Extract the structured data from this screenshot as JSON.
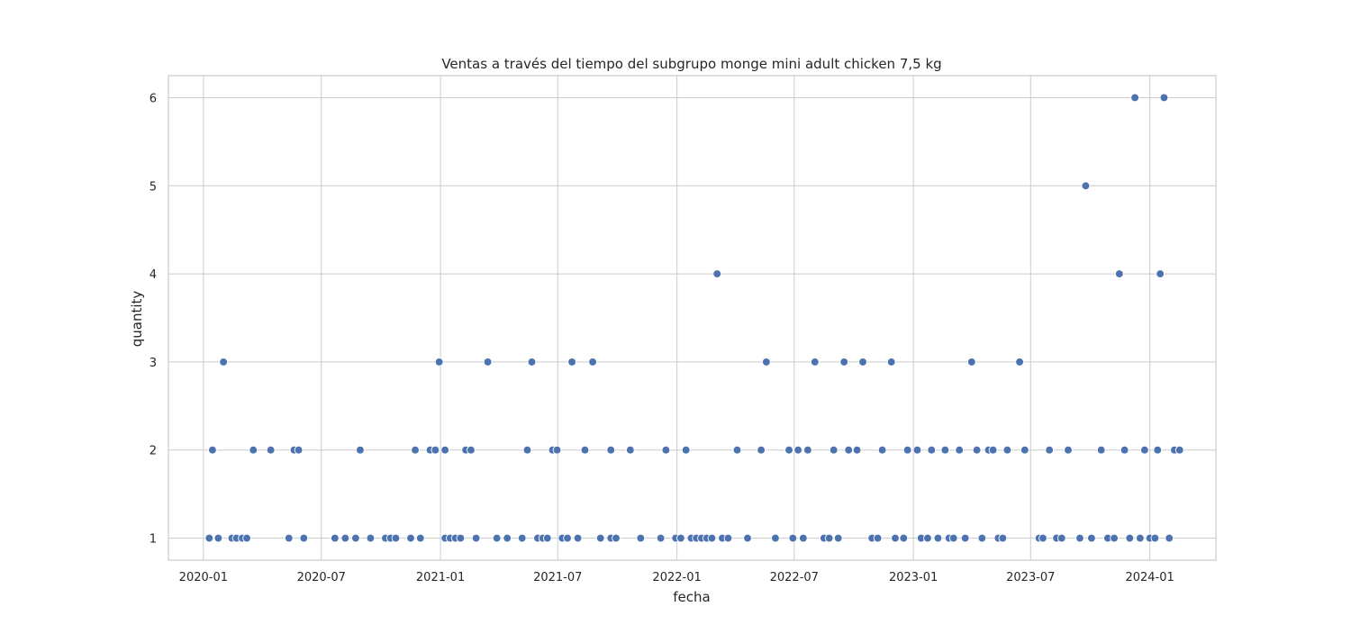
{
  "chart_data": {
    "type": "scatter",
    "title": "Ventas a través del tiempo del subgrupo monge mini adult chicken 7,5 kg",
    "xlabel": "fecha",
    "ylabel": "quantity",
    "x_ticks": [
      "2020-01",
      "2020-07",
      "2021-01",
      "2021-07",
      "2022-01",
      "2022-07",
      "2023-01",
      "2023-07",
      "2024-01"
    ],
    "y_ticks": [
      1,
      2,
      3,
      4,
      5,
      6
    ],
    "xlim": [
      "2019-11-08",
      "2024-04-12"
    ],
    "ylim": [
      0.75,
      6.25
    ],
    "grid": true,
    "point_color": "#4c72b0",
    "points": [
      {
        "x": "2020-01-10",
        "y": 1
      },
      {
        "x": "2020-01-15",
        "y": 2
      },
      {
        "x": "2020-01-24",
        "y": 1
      },
      {
        "x": "2020-02-01",
        "y": 3
      },
      {
        "x": "2020-02-14",
        "y": 1
      },
      {
        "x": "2020-02-21",
        "y": 1
      },
      {
        "x": "2020-03-01",
        "y": 1
      },
      {
        "x": "2020-03-08",
        "y": 1
      },
      {
        "x": "2020-03-18",
        "y": 2
      },
      {
        "x": "2020-04-14",
        "y": 2
      },
      {
        "x": "2020-05-12",
        "y": 1
      },
      {
        "x": "2020-05-20",
        "y": 2
      },
      {
        "x": "2020-05-27",
        "y": 2
      },
      {
        "x": "2020-06-04",
        "y": 1
      },
      {
        "x": "2020-07-22",
        "y": 1
      },
      {
        "x": "2020-08-07",
        "y": 1
      },
      {
        "x": "2020-08-23",
        "y": 1
      },
      {
        "x": "2020-08-30",
        "y": 2
      },
      {
        "x": "2020-09-15",
        "y": 1
      },
      {
        "x": "2020-10-08",
        "y": 1
      },
      {
        "x": "2020-10-16",
        "y": 1
      },
      {
        "x": "2020-10-24",
        "y": 1
      },
      {
        "x": "2020-11-16",
        "y": 1
      },
      {
        "x": "2020-11-23",
        "y": 2
      },
      {
        "x": "2020-12-01",
        "y": 1
      },
      {
        "x": "2020-12-16",
        "y": 2
      },
      {
        "x": "2020-12-24",
        "y": 2
      },
      {
        "x": "2020-12-30",
        "y": 3
      },
      {
        "x": "2021-01-08",
        "y": 2
      },
      {
        "x": "2021-01-08",
        "y": 1
      },
      {
        "x": "2021-01-16",
        "y": 1
      },
      {
        "x": "2021-01-24",
        "y": 1
      },
      {
        "x": "2021-02-01",
        "y": 1
      },
      {
        "x": "2021-02-09",
        "y": 2
      },
      {
        "x": "2021-02-17",
        "y": 2
      },
      {
        "x": "2021-02-25",
        "y": 1
      },
      {
        "x": "2021-03-15",
        "y": 3
      },
      {
        "x": "2021-03-29",
        "y": 1
      },
      {
        "x": "2021-04-14",
        "y": 1
      },
      {
        "x": "2021-05-07",
        "y": 1
      },
      {
        "x": "2021-05-15",
        "y": 2
      },
      {
        "x": "2021-05-22",
        "y": 3
      },
      {
        "x": "2021-05-31",
        "y": 1
      },
      {
        "x": "2021-06-08",
        "y": 1
      },
      {
        "x": "2021-06-15",
        "y": 1
      },
      {
        "x": "2021-06-23",
        "y": 2
      },
      {
        "x": "2021-06-30",
        "y": 2
      },
      {
        "x": "2021-07-08",
        "y": 1
      },
      {
        "x": "2021-07-16",
        "y": 1
      },
      {
        "x": "2021-07-23",
        "y": 3
      },
      {
        "x": "2021-08-01",
        "y": 1
      },
      {
        "x": "2021-08-12",
        "y": 2
      },
      {
        "x": "2021-08-24",
        "y": 3
      },
      {
        "x": "2021-09-05",
        "y": 1
      },
      {
        "x": "2021-09-21",
        "y": 2
      },
      {
        "x": "2021-09-21",
        "y": 1
      },
      {
        "x": "2021-09-29",
        "y": 1
      },
      {
        "x": "2021-10-21",
        "y": 2
      },
      {
        "x": "2021-11-06",
        "y": 1
      },
      {
        "x": "2021-12-07",
        "y": 1
      },
      {
        "x": "2021-12-15",
        "y": 2
      },
      {
        "x": "2021-12-30",
        "y": 1
      },
      {
        "x": "2022-01-07",
        "y": 1
      },
      {
        "x": "2022-01-15",
        "y": 2
      },
      {
        "x": "2022-01-23",
        "y": 1
      },
      {
        "x": "2022-01-31",
        "y": 1
      },
      {
        "x": "2022-02-08",
        "y": 1
      },
      {
        "x": "2022-02-16",
        "y": 1
      },
      {
        "x": "2022-02-24",
        "y": 1
      },
      {
        "x": "2022-03-04",
        "y": 4
      },
      {
        "x": "2022-03-12",
        "y": 1
      },
      {
        "x": "2022-03-21",
        "y": 1
      },
      {
        "x": "2022-04-04",
        "y": 2
      },
      {
        "x": "2022-04-20",
        "y": 1
      },
      {
        "x": "2022-05-11",
        "y": 2
      },
      {
        "x": "2022-05-19",
        "y": 3
      },
      {
        "x": "2022-06-02",
        "y": 1
      },
      {
        "x": "2022-06-23",
        "y": 2
      },
      {
        "x": "2022-06-29",
        "y": 1
      },
      {
        "x": "2022-07-07",
        "y": 2
      },
      {
        "x": "2022-07-15",
        "y": 1
      },
      {
        "x": "2022-07-22",
        "y": 2
      },
      {
        "x": "2022-08-02",
        "y": 3
      },
      {
        "x": "2022-08-16",
        "y": 1
      },
      {
        "x": "2022-08-24",
        "y": 1
      },
      {
        "x": "2022-08-31",
        "y": 2
      },
      {
        "x": "2022-09-07",
        "y": 1
      },
      {
        "x": "2022-09-16",
        "y": 3
      },
      {
        "x": "2022-09-23",
        "y": 2
      },
      {
        "x": "2022-10-06",
        "y": 2
      },
      {
        "x": "2022-10-15",
        "y": 3
      },
      {
        "x": "2022-10-29",
        "y": 1
      },
      {
        "x": "2022-11-07",
        "y": 1
      },
      {
        "x": "2022-11-14",
        "y": 2
      },
      {
        "x": "2022-11-28",
        "y": 3
      },
      {
        "x": "2022-12-04",
        "y": 1
      },
      {
        "x": "2022-12-17",
        "y": 1
      },
      {
        "x": "2022-12-23",
        "y": 2
      },
      {
        "x": "2023-01-07",
        "y": 2
      },
      {
        "x": "2023-01-13",
        "y": 1
      },
      {
        "x": "2023-01-23",
        "y": 1
      },
      {
        "x": "2023-01-29",
        "y": 2
      },
      {
        "x": "2023-02-08",
        "y": 1
      },
      {
        "x": "2023-02-19",
        "y": 2
      },
      {
        "x": "2023-02-25",
        "y": 1
      },
      {
        "x": "2023-03-04",
        "y": 1
      },
      {
        "x": "2023-03-13",
        "y": 2
      },
      {
        "x": "2023-03-22",
        "y": 1
      },
      {
        "x": "2023-04-01",
        "y": 3
      },
      {
        "x": "2023-04-09",
        "y": 2
      },
      {
        "x": "2023-04-17",
        "y": 1
      },
      {
        "x": "2023-04-27",
        "y": 2
      },
      {
        "x": "2023-05-04",
        "y": 2
      },
      {
        "x": "2023-05-12",
        "y": 1
      },
      {
        "x": "2023-05-19",
        "y": 1
      },
      {
        "x": "2023-05-26",
        "y": 2
      },
      {
        "x": "2023-06-14",
        "y": 3
      },
      {
        "x": "2023-06-22",
        "y": 2
      },
      {
        "x": "2023-07-14",
        "y": 1
      },
      {
        "x": "2023-07-20",
        "y": 1
      },
      {
        "x": "2023-07-30",
        "y": 2
      },
      {
        "x": "2023-08-10",
        "y": 1
      },
      {
        "x": "2023-08-18",
        "y": 1
      },
      {
        "x": "2023-08-28",
        "y": 2
      },
      {
        "x": "2023-09-15",
        "y": 1
      },
      {
        "x": "2023-09-24",
        "y": 5
      },
      {
        "x": "2023-10-03",
        "y": 1
      },
      {
        "x": "2023-10-18",
        "y": 2
      },
      {
        "x": "2023-10-28",
        "y": 1
      },
      {
        "x": "2023-11-07",
        "y": 1
      },
      {
        "x": "2023-11-15",
        "y": 4
      },
      {
        "x": "2023-11-23",
        "y": 2
      },
      {
        "x": "2023-12-01",
        "y": 1
      },
      {
        "x": "2023-12-09",
        "y": 6
      },
      {
        "x": "2023-12-17",
        "y": 1
      },
      {
        "x": "2023-12-24",
        "y": 2
      },
      {
        "x": "2024-01-01",
        "y": 1
      },
      {
        "x": "2024-01-09",
        "y": 1
      },
      {
        "x": "2024-01-13",
        "y": 2
      },
      {
        "x": "2024-01-17",
        "y": 4
      },
      {
        "x": "2024-01-23",
        "y": 6
      },
      {
        "x": "2024-01-31",
        "y": 1
      },
      {
        "x": "2024-02-08",
        "y": 2
      },
      {
        "x": "2024-02-16",
        "y": 2
      }
    ]
  }
}
